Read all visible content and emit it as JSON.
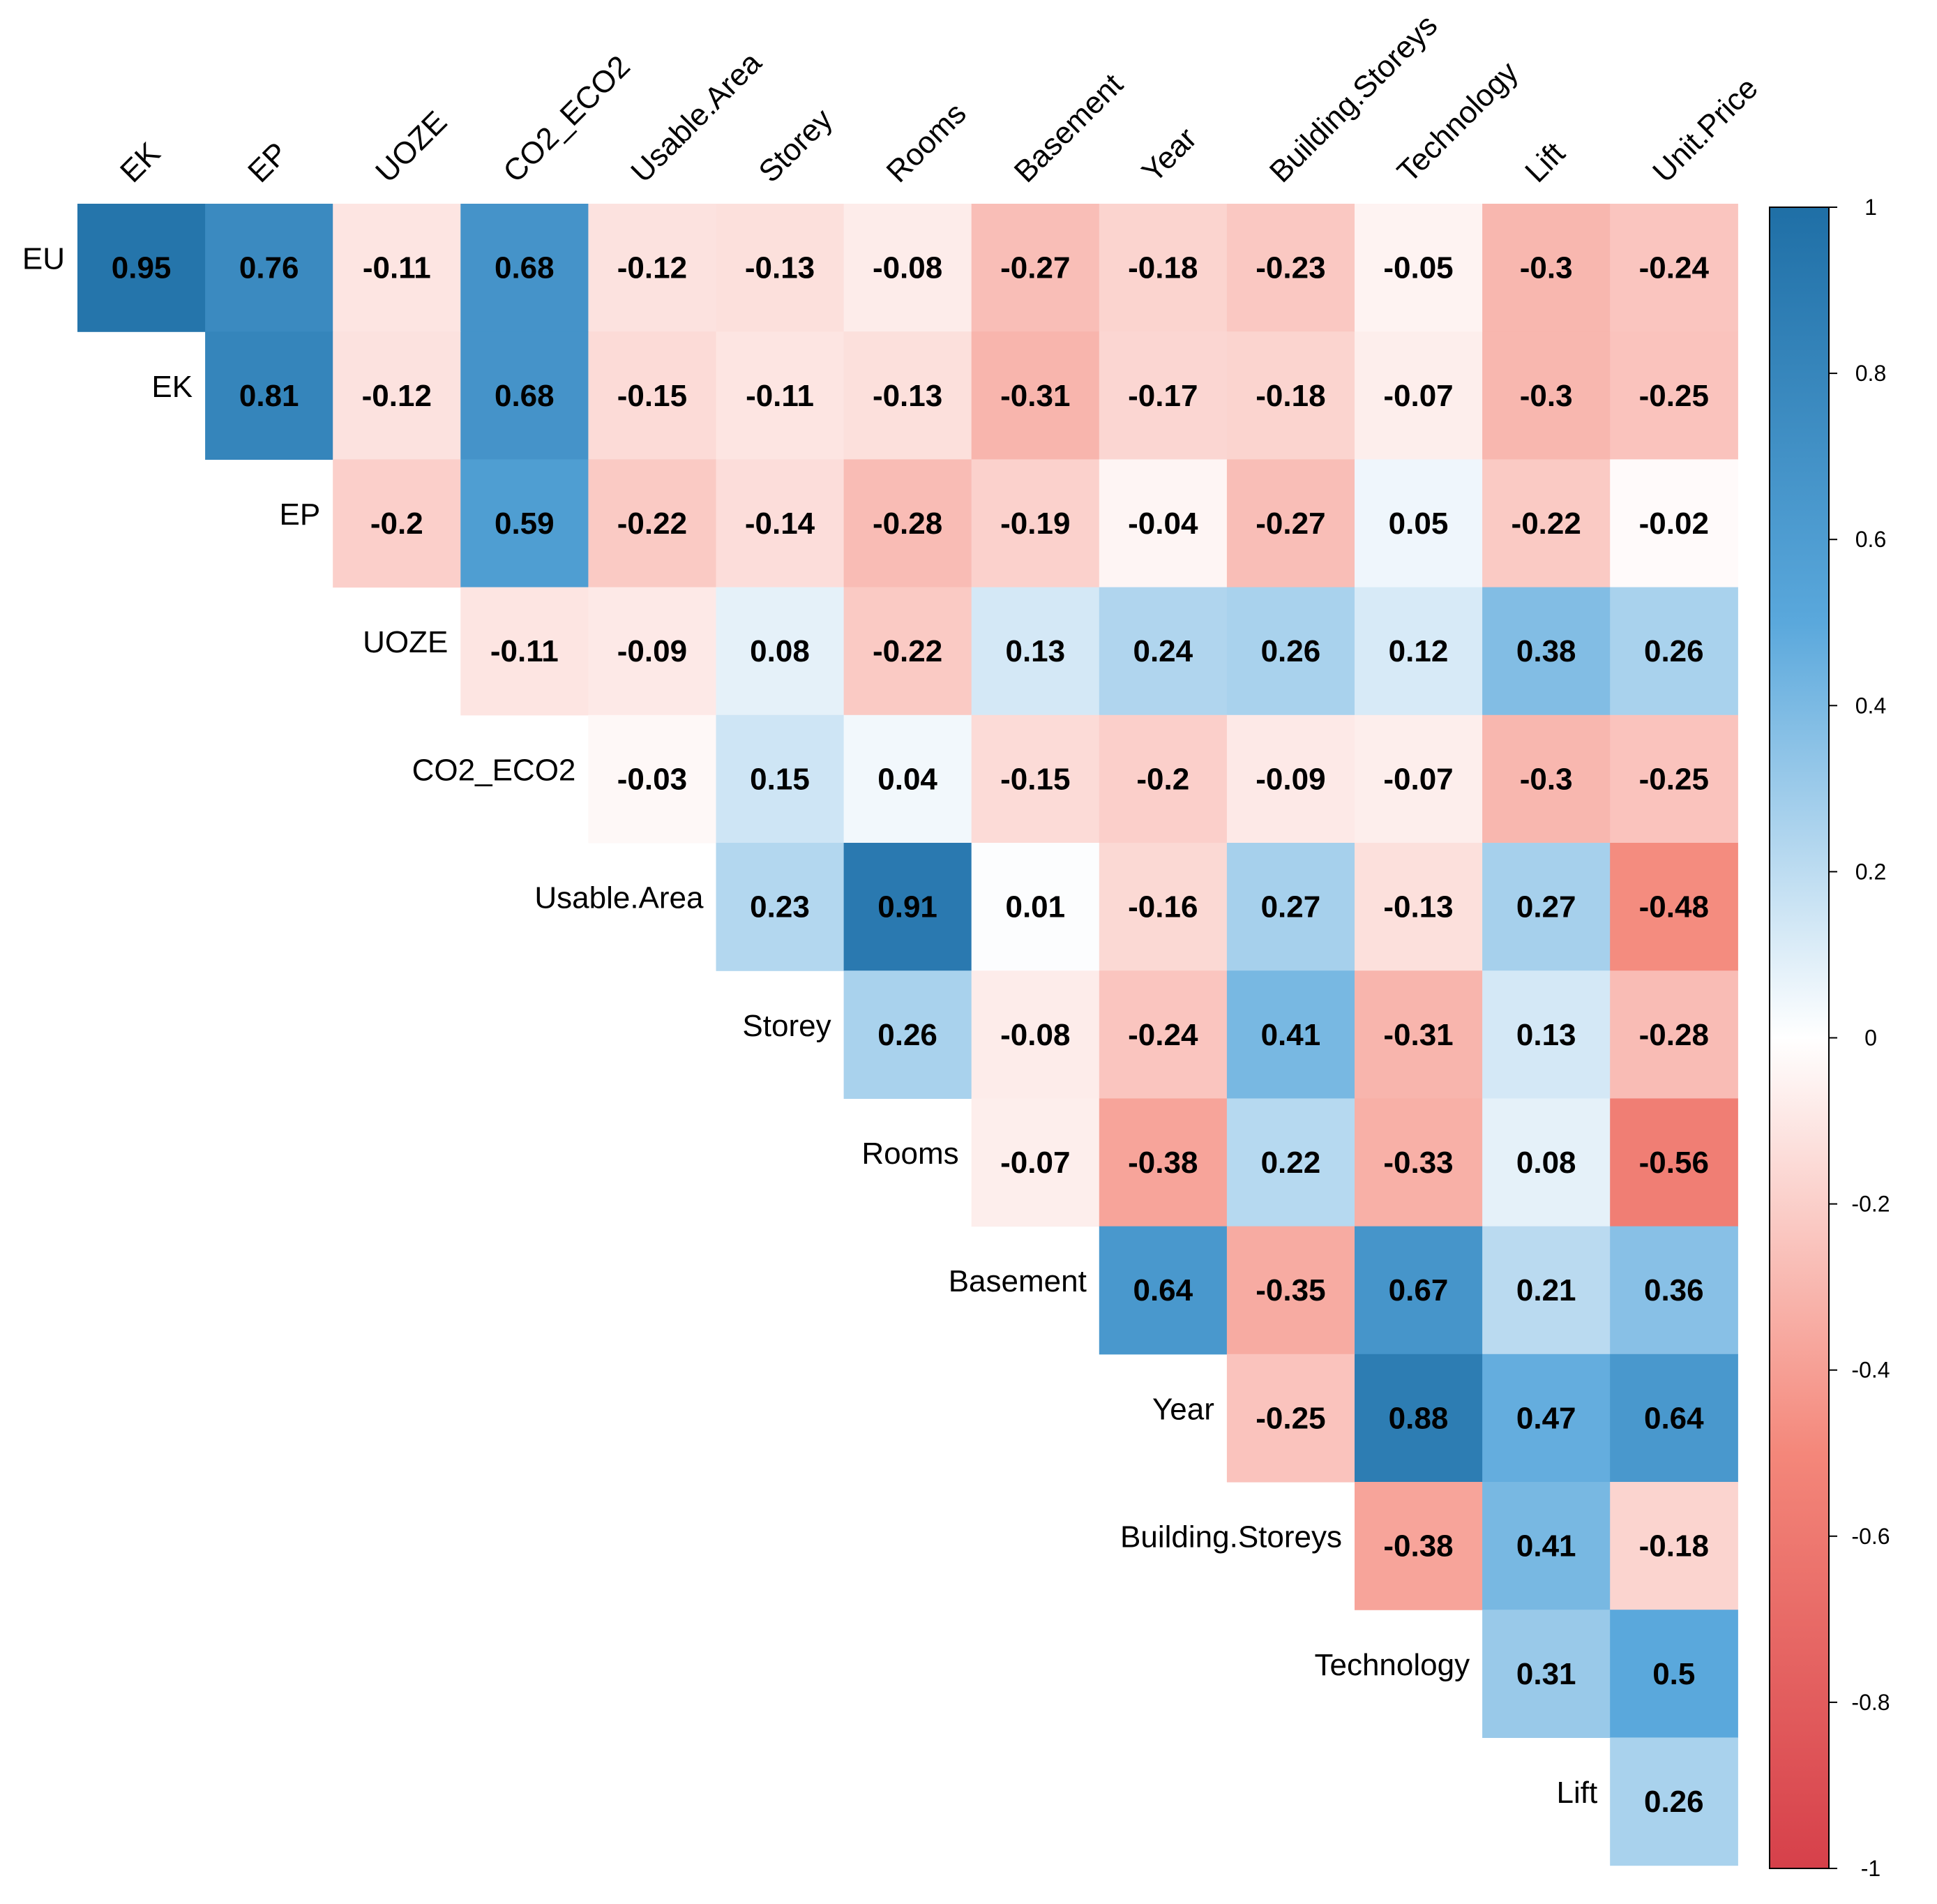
{
  "chart_data": {
    "type": "heatmap",
    "subtype": "correlation-upper-triangle",
    "variables": [
      "EU",
      "EK",
      "EP",
      "UOZE",
      "CO2_ECO2",
      "Usable.Area",
      "Storey",
      "Rooms",
      "Basement",
      "Year",
      "Building.Storeys",
      "Technology",
      "Lift",
      "Unit.Price"
    ],
    "row_labels": [
      "EU",
      "EK",
      "EP",
      "UOZE",
      "CO2_ECO2",
      "Usable.Area",
      "Storey",
      "Rooms",
      "Basement",
      "Year",
      "Building.Storeys",
      "Technology",
      "Lift"
    ],
    "col_labels": [
      "EK",
      "EP",
      "UOZE",
      "CO2_ECO2",
      "Usable.Area",
      "Storey",
      "Rooms",
      "Basement",
      "Year",
      "Building.Storeys",
      "Technology",
      "Lift",
      "Unit.Price"
    ],
    "rows": [
      {
        "label": "EU",
        "values": [
          "0.95",
          "0.76",
          "-0.11",
          "0.68",
          "-0.12",
          "-0.13",
          "-0.08",
          "-0.27",
          "-0.18",
          "-0.23",
          "-0.05",
          "-0.3",
          "-0.24"
        ]
      },
      {
        "label": "EK",
        "values": [
          "0.81",
          "-0.12",
          "0.68",
          "-0.15",
          "-0.11",
          "-0.13",
          "-0.31",
          "-0.17",
          "-0.18",
          "-0.07",
          "-0.3",
          "-0.25"
        ]
      },
      {
        "label": "EP",
        "values": [
          "-0.2",
          "0.59",
          "-0.22",
          "-0.14",
          "-0.28",
          "-0.19",
          "-0.04",
          "-0.27",
          "0.05",
          "-0.22",
          "-0.02"
        ]
      },
      {
        "label": "UOZE",
        "values": [
          "-0.11",
          "-0.09",
          "0.08",
          "-0.22",
          "0.13",
          "0.24",
          "0.26",
          "0.12",
          "0.38",
          "0.26"
        ]
      },
      {
        "label": "CO2_ECO2",
        "values": [
          "-0.03",
          "0.15",
          "0.04",
          "-0.15",
          "-0.2",
          "-0.09",
          "-0.07",
          "-0.3",
          "-0.25"
        ]
      },
      {
        "label": "Usable.Area",
        "values": [
          "0.23",
          "0.91",
          "0.01",
          "-0.16",
          "0.27",
          "-0.13",
          "0.27",
          "-0.48"
        ]
      },
      {
        "label": "Storey",
        "values": [
          "0.26",
          "-0.08",
          "-0.24",
          "0.41",
          "-0.31",
          "0.13",
          "-0.28"
        ]
      },
      {
        "label": "Rooms",
        "values": [
          "-0.07",
          "-0.38",
          "0.22",
          "-0.33",
          "0.08",
          "-0.56"
        ]
      },
      {
        "label": "Basement",
        "values": [
          "0.64",
          "-0.35",
          "0.67",
          "0.21",
          "0.36"
        ]
      },
      {
        "label": "Year",
        "values": [
          "-0.25",
          "0.88",
          "0.47",
          "0.64"
        ]
      },
      {
        "label": "Building.Storeys",
        "values": [
          "-0.38",
          "0.41",
          "-0.18"
        ]
      },
      {
        "label": "Technology",
        "values": [
          "0.31",
          "0.5"
        ]
      },
      {
        "label": "Lift",
        "values": [
          "0.26"
        ]
      }
    ],
    "color_scale": {
      "range": [
        -1,
        1
      ],
      "ticks": [
        "1",
        "0.8",
        "0.6",
        "0.4",
        "0.2",
        "0",
        "-0.2",
        "-0.4",
        "-0.6",
        "-0.8",
        "-1"
      ],
      "stops": [
        {
          "value": -1,
          "color": "#d6404a"
        },
        {
          "value": -0.5,
          "color": "#f4877a"
        },
        {
          "value": 0,
          "color": "#ffffff"
        },
        {
          "value": 0.5,
          "color": "#5aa8dc"
        },
        {
          "value": 1,
          "color": "#1f6fa6"
        }
      ]
    },
    "legend": "right",
    "title": "",
    "xlabel": "",
    "ylabel": ""
  }
}
